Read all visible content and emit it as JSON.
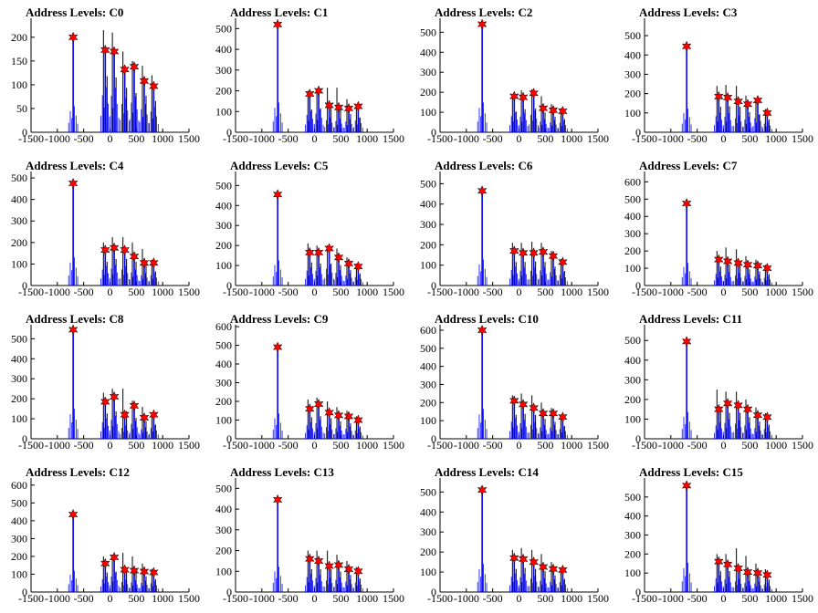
{
  "figure": {
    "x_ticks": [
      "-1500",
      "-1000",
      "-500",
      "0",
      "500",
      "1000",
      "1500"
    ],
    "x_range": [
      -1500,
      1500
    ]
  },
  "colors": {
    "histogram": "#0000ff",
    "histogram_overlay": "#000000",
    "peak_marker": "#ff0000",
    "marker_outline": "#000000"
  },
  "chart_data": [
    {
      "type": "bar",
      "title": "Address Levels: C0",
      "ylim": [
        0,
        240
      ],
      "yticks": [
        0,
        50,
        100,
        150,
        200
      ],
      "peaks": [
        {
          "x": -700,
          "y": 200
        },
        {
          "x": -90,
          "y": 173
        },
        {
          "x": 80,
          "y": 170
        },
        {
          "x": 280,
          "y": 132
        },
        {
          "x": 460,
          "y": 138
        },
        {
          "x": 650,
          "y": 108
        },
        {
          "x": 830,
          "y": 97
        }
      ],
      "overlay_heights": [
        0,
        215,
        210,
        170,
        150,
        140,
        120
      ]
    },
    {
      "type": "bar",
      "title": "Address Levels: C1",
      "ylim": [
        0,
        550
      ],
      "yticks": [
        0,
        100,
        200,
        300,
        400,
        500
      ],
      "peaks": [
        {
          "x": -700,
          "y": 520
        },
        {
          "x": -90,
          "y": 185
        },
        {
          "x": 80,
          "y": 200
        },
        {
          "x": 280,
          "y": 130
        },
        {
          "x": 460,
          "y": 120
        },
        {
          "x": 650,
          "y": 115
        },
        {
          "x": 830,
          "y": 125
        }
      ],
      "overlay_heights": [
        0,
        200,
        210,
        215,
        215,
        160,
        130
      ]
    },
    {
      "type": "bar",
      "title": "Address Levels: C2",
      "ylim": [
        0,
        570
      ],
      "yticks": [
        0,
        100,
        200,
        300,
        400,
        500
      ],
      "peaks": [
        {
          "x": -700,
          "y": 540
        },
        {
          "x": -90,
          "y": 180
        },
        {
          "x": 80,
          "y": 175
        },
        {
          "x": 280,
          "y": 195
        },
        {
          "x": 460,
          "y": 120
        },
        {
          "x": 650,
          "y": 110
        },
        {
          "x": 830,
          "y": 105
        }
      ],
      "overlay_heights": [
        0,
        190,
        210,
        215,
        180,
        140,
        120
      ]
    },
    {
      "type": "bar",
      "title": "Address Levels: C3",
      "ylim": [
        0,
        590
      ],
      "yticks": [
        0,
        100,
        200,
        300,
        400,
        500
      ],
      "peaks": [
        {
          "x": -700,
          "y": 445
        },
        {
          "x": -90,
          "y": 185
        },
        {
          "x": 80,
          "y": 180
        },
        {
          "x": 280,
          "y": 160
        },
        {
          "x": 460,
          "y": 145
        },
        {
          "x": 650,
          "y": 165
        },
        {
          "x": 830,
          "y": 100
        }
      ],
      "overlay_heights": [
        0,
        240,
        245,
        240,
        190,
        170,
        120
      ]
    },
    {
      "type": "bar",
      "title": "Address Levels: C4",
      "ylim": [
        0,
        530
      ],
      "yticks": [
        0,
        100,
        200,
        300,
        400,
        500
      ],
      "peaks": [
        {
          "x": -700,
          "y": 475
        },
        {
          "x": -90,
          "y": 165
        },
        {
          "x": 80,
          "y": 175
        },
        {
          "x": 280,
          "y": 165
        },
        {
          "x": 460,
          "y": 135
        },
        {
          "x": 650,
          "y": 105
        },
        {
          "x": 830,
          "y": 105
        }
      ],
      "overlay_heights": [
        0,
        200,
        225,
        225,
        200,
        170,
        120
      ]
    },
    {
      "type": "bar",
      "title": "Address Levels: C5",
      "ylim": [
        0,
        570
      ],
      "yticks": [
        0,
        100,
        200,
        300,
        400,
        500
      ],
      "peaks": [
        {
          "x": -700,
          "y": 455
        },
        {
          "x": -90,
          "y": 165
        },
        {
          "x": 80,
          "y": 165
        },
        {
          "x": 280,
          "y": 185
        },
        {
          "x": 460,
          "y": 140
        },
        {
          "x": 650,
          "y": 110
        },
        {
          "x": 830,
          "y": 95
        }
      ],
      "overlay_heights": [
        0,
        210,
        200,
        200,
        185,
        140,
        110
      ]
    },
    {
      "type": "bar",
      "title": "Address Levels: C6",
      "ylim": [
        0,
        560
      ],
      "yticks": [
        0,
        100,
        200,
        300,
        400,
        500
      ],
      "peaks": [
        {
          "x": -700,
          "y": 465
        },
        {
          "x": -90,
          "y": 170
        },
        {
          "x": 80,
          "y": 160
        },
        {
          "x": 280,
          "y": 160
        },
        {
          "x": 460,
          "y": 165
        },
        {
          "x": 650,
          "y": 145
        },
        {
          "x": 830,
          "y": 115
        }
      ],
      "overlay_heights": [
        0,
        210,
        210,
        215,
        210,
        170,
        130
      ]
    },
    {
      "type": "bar",
      "title": "Address Levels: C7",
      "ylim": [
        0,
        660
      ],
      "yticks": [
        0,
        100,
        200,
        300,
        400,
        500,
        600
      ],
      "peaks": [
        {
          "x": -700,
          "y": 475
        },
        {
          "x": -90,
          "y": 150
        },
        {
          "x": 80,
          "y": 140
        },
        {
          "x": 280,
          "y": 130
        },
        {
          "x": 460,
          "y": 120
        },
        {
          "x": 650,
          "y": 115
        },
        {
          "x": 830,
          "y": 100
        }
      ],
      "overlay_heights": [
        0,
        200,
        220,
        210,
        170,
        150,
        120
      ]
    },
    {
      "type": "bar",
      "title": "Address Levels: C8",
      "ylim": [
        0,
        570
      ],
      "yticks": [
        0,
        100,
        200,
        300,
        400,
        500
      ],
      "peaks": [
        {
          "x": -700,
          "y": 545
        },
        {
          "x": -90,
          "y": 185
        },
        {
          "x": 80,
          "y": 210
        },
        {
          "x": 280,
          "y": 120
        },
        {
          "x": 460,
          "y": 165
        },
        {
          "x": 650,
          "y": 105
        },
        {
          "x": 830,
          "y": 120
        }
      ],
      "overlay_heights": [
        0,
        230,
        250,
        250,
        190,
        160,
        130
      ]
    },
    {
      "type": "bar",
      "title": "Address Levels: C9",
      "ylim": [
        0,
        610
      ],
      "yticks": [
        0,
        100,
        200,
        300,
        400,
        500,
        600
      ],
      "peaks": [
        {
          "x": -700,
          "y": 490
        },
        {
          "x": -90,
          "y": 160
        },
        {
          "x": 80,
          "y": 185
        },
        {
          "x": 280,
          "y": 140
        },
        {
          "x": 460,
          "y": 125
        },
        {
          "x": 650,
          "y": 120
        },
        {
          "x": 830,
          "y": 100
        }
      ],
      "overlay_heights": [
        0,
        210,
        220,
        200,
        170,
        150,
        120
      ]
    },
    {
      "type": "bar",
      "title": "Address Levels: C10",
      "ylim": [
        0,
        630
      ],
      "yticks": [
        0,
        100,
        200,
        300,
        400,
        500,
        600
      ],
      "peaks": [
        {
          "x": -700,
          "y": 600
        },
        {
          "x": -90,
          "y": 210
        },
        {
          "x": 80,
          "y": 190
        },
        {
          "x": 280,
          "y": 170
        },
        {
          "x": 460,
          "y": 140
        },
        {
          "x": 650,
          "y": 140
        },
        {
          "x": 830,
          "y": 120
        }
      ],
      "overlay_heights": [
        0,
        240,
        250,
        240,
        200,
        170,
        130
      ]
    },
    {
      "type": "bar",
      "title": "Address Levels: C11",
      "ylim": [
        0,
        580
      ],
      "yticks": [
        0,
        100,
        200,
        300,
        400,
        500
      ],
      "peaks": [
        {
          "x": -700,
          "y": 495
        },
        {
          "x": -90,
          "y": 150
        },
        {
          "x": 80,
          "y": 180
        },
        {
          "x": 280,
          "y": 170
        },
        {
          "x": 460,
          "y": 150
        },
        {
          "x": 650,
          "y": 120
        },
        {
          "x": 830,
          "y": 110
        }
      ],
      "overlay_heights": [
        0,
        250,
        240,
        240,
        200,
        160,
        130
      ]
    },
    {
      "type": "bar",
      "title": "Address Levels: C12",
      "ylim": [
        0,
        640
      ],
      "yticks": [
        0,
        100,
        200,
        300,
        400,
        500,
        600
      ],
      "peaks": [
        {
          "x": -700,
          "y": 435
        },
        {
          "x": -90,
          "y": 160
        },
        {
          "x": 80,
          "y": 195
        },
        {
          "x": 280,
          "y": 125
        },
        {
          "x": 460,
          "y": 120
        },
        {
          "x": 650,
          "y": 115
        },
        {
          "x": 830,
          "y": 110
        }
      ],
      "overlay_heights": [
        0,
        200,
        210,
        220,
        200,
        160,
        130
      ]
    },
    {
      "type": "bar",
      "title": "Address Levels: C13",
      "ylim": [
        0,
        550
      ],
      "yticks": [
        0,
        100,
        200,
        300,
        400,
        500
      ],
      "peaks": [
        {
          "x": -700,
          "y": 445
        },
        {
          "x": -90,
          "y": 160
        },
        {
          "x": 80,
          "y": 150
        },
        {
          "x": 280,
          "y": 125
        },
        {
          "x": 460,
          "y": 130
        },
        {
          "x": 650,
          "y": 110
        },
        {
          "x": 830,
          "y": 100
        }
      ],
      "overlay_heights": [
        0,
        200,
        200,
        200,
        180,
        150,
        120
      ]
    },
    {
      "type": "bar",
      "title": "Address Levels: C14",
      "ylim": [
        0,
        570
      ],
      "yticks": [
        0,
        100,
        200,
        300,
        400,
        500
      ],
      "peaks": [
        {
          "x": -700,
          "y": 510
        },
        {
          "x": -90,
          "y": 170
        },
        {
          "x": 80,
          "y": 165
        },
        {
          "x": 280,
          "y": 150
        },
        {
          "x": 460,
          "y": 125
        },
        {
          "x": 650,
          "y": 115
        },
        {
          "x": 830,
          "y": 110
        }
      ],
      "overlay_heights": [
        0,
        210,
        220,
        210,
        190,
        150,
        120
      ]
    },
    {
      "type": "bar",
      "title": "Address Levels: C15",
      "ylim": [
        0,
        600
      ],
      "yticks": [
        0,
        100,
        200,
        300,
        400,
        500
      ],
      "peaks": [
        {
          "x": -700,
          "y": 560
        },
        {
          "x": -90,
          "y": 160
        },
        {
          "x": 80,
          "y": 145
        },
        {
          "x": 280,
          "y": 125
        },
        {
          "x": 460,
          "y": 105
        },
        {
          "x": 650,
          "y": 100
        },
        {
          "x": 830,
          "y": 90
        }
      ],
      "overlay_heights": [
        0,
        200,
        200,
        230,
        190,
        150,
        120
      ]
    }
  ]
}
